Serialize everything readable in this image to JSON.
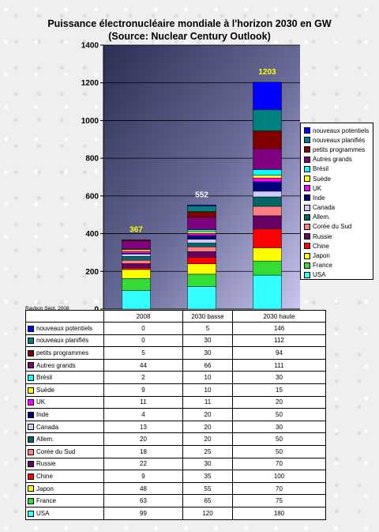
{
  "title_line1": "Puissance électronucléaire mondiale à l'horizon 2030 en GW",
  "title_line2": "(Source: Nuclear Century Outlook)",
  "author": "Raybon Sept. 2008",
  "chart_data": {
    "type": "bar",
    "stacked": true,
    "categories": [
      "2008",
      "2030 basse",
      "2030 haute"
    ],
    "totals": [
      367,
      552,
      1203
    ],
    "ylim": [
      0,
      1400
    ],
    "yticks": [
      0,
      200,
      400,
      600,
      800,
      1000,
      1200,
      1400
    ],
    "grid": true,
    "legend_position": "right",
    "series": [
      {
        "name": "USA",
        "color": "#33ffff",
        "values": [
          99,
          120,
          180
        ]
      },
      {
        "name": "France",
        "color": "#33dd33",
        "values": [
          63,
          65,
          75
        ]
      },
      {
        "name": "Japon",
        "color": "#ffff00",
        "values": [
          48,
          55,
          70
        ]
      },
      {
        "name": "Chine",
        "color": "#ff0000",
        "values": [
          9,
          35,
          100
        ]
      },
      {
        "name": "Russie",
        "color": "#660066",
        "values": [
          22,
          30,
          70
        ]
      },
      {
        "name": "Corée du Sud",
        "color": "#ff8080",
        "values": [
          18,
          25,
          50
        ]
      },
      {
        "name": "Allem.",
        "color": "#006666",
        "values": [
          20,
          20,
          50
        ]
      },
      {
        "name": "Canada",
        "color": "#ccccff",
        "values": [
          13,
          20,
          30
        ]
      },
      {
        "name": "Inde",
        "color": "#000080",
        "values": [
          4,
          20,
          50
        ]
      },
      {
        "name": "UK",
        "color": "#ff00ff",
        "values": [
          11,
          11,
          20
        ]
      },
      {
        "name": "Suède",
        "color": "#ffff00",
        "values": [
          9,
          10,
          15
        ]
      },
      {
        "name": "Brésil",
        "color": "#00ffff",
        "values": [
          2,
          10,
          30
        ]
      },
      {
        "name": "Autres grands",
        "color": "#800080",
        "values": [
          44,
          66,
          111
        ]
      },
      {
        "name": "petits programmes",
        "color": "#800000",
        "values": [
          5,
          30,
          94
        ]
      },
      {
        "name": "nouveaux planifiés",
        "color": "#008080",
        "values": [
          0,
          30,
          112
        ]
      },
      {
        "name": "nouveaux potentiels",
        "color": "#0000ff",
        "values": [
          0,
          5,
          146
        ]
      }
    ]
  }
}
